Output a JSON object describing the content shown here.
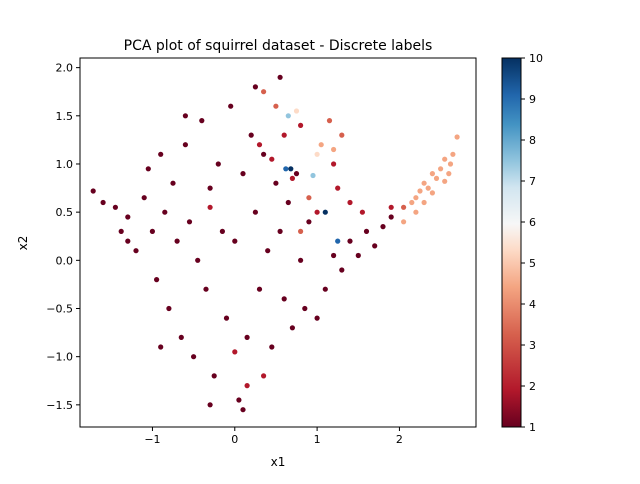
{
  "chart_data": {
    "type": "scatter",
    "title": "PCA plot of squirrel dataset - Discrete labels",
    "xlabel": "x1",
    "ylabel": "x2",
    "xlim": [
      -1.88,
      2.93
    ],
    "ylim": [
      -1.73,
      2.1
    ],
    "xticks": [
      -1,
      0,
      1,
      2
    ],
    "yticks": [
      -1.5,
      -1.0,
      -0.5,
      0.0,
      0.5,
      1.0,
      1.5,
      2.0
    ],
    "xtick_labels": [
      "−1",
      "0",
      "1",
      "2"
    ],
    "ytick_labels": [
      "−1.5",
      "−1.0",
      "−0.5",
      "0.0",
      "0.5",
      "1.0",
      "1.5",
      "2.0"
    ],
    "colorbar": {
      "label": "",
      "vmin": 1,
      "vmax": 10,
      "ticks": [
        1,
        2,
        3,
        4,
        5,
        6,
        7,
        8,
        9,
        10
      ],
      "tick_labels": [
        "1",
        "2",
        "3",
        "4",
        "5",
        "6",
        "7",
        "8",
        "9",
        "10"
      ],
      "colormap": "RdBu"
    },
    "grid": false,
    "legend": "none",
    "series": [
      {
        "label_value": 1,
        "color": "#67001f",
        "points": [
          [
            -1.72,
            0.72
          ],
          [
            -1.6,
            0.6
          ],
          [
            -1.45,
            0.55
          ],
          [
            -1.38,
            0.3
          ],
          [
            -1.3,
            0.45
          ],
          [
            -1.2,
            0.1
          ],
          [
            -1.1,
            0.65
          ],
          [
            -1.05,
            0.95
          ],
          [
            -1.0,
            0.3
          ],
          [
            -0.95,
            -0.2
          ],
          [
            -0.9,
            1.1
          ],
          [
            -0.85,
            0.5
          ],
          [
            -0.8,
            -0.5
          ],
          [
            -0.75,
            0.8
          ],
          [
            -0.7,
            0.2
          ],
          [
            -0.65,
            -0.8
          ],
          [
            -0.6,
            1.2
          ],
          [
            -0.55,
            0.4
          ],
          [
            -0.5,
            -1.0
          ],
          [
            -0.45,
            0.0
          ],
          [
            -0.4,
            1.45
          ],
          [
            -0.35,
            -0.3
          ],
          [
            -0.3,
            0.75
          ],
          [
            -0.25,
            -1.2
          ],
          [
            -0.2,
            1.0
          ],
          [
            -0.15,
            0.3
          ],
          [
            -0.1,
            -0.6
          ],
          [
            -0.05,
            1.6
          ],
          [
            0.0,
            0.2
          ],
          [
            0.05,
            -1.45
          ],
          [
            0.1,
            0.9
          ],
          [
            0.15,
            -0.8
          ],
          [
            0.2,
            1.3
          ],
          [
            0.25,
            0.5
          ],
          [
            0.3,
            -0.3
          ],
          [
            0.35,
            1.1
          ],
          [
            0.4,
            0.1
          ],
          [
            0.45,
            -0.9
          ],
          [
            0.5,
            0.8
          ],
          [
            0.55,
            0.3
          ],
          [
            0.6,
            -0.4
          ],
          [
            0.65,
            0.6
          ],
          [
            0.7,
            -0.7
          ],
          [
            0.75,
            0.9
          ],
          [
            0.8,
            0.0
          ],
          [
            0.85,
            -0.5
          ],
          [
            0.9,
            0.4
          ],
          [
            1.0,
            -0.6
          ],
          [
            1.1,
            -0.3
          ],
          [
            1.2,
            0.05
          ],
          [
            1.3,
            -0.1
          ],
          [
            1.4,
            0.2
          ],
          [
            1.5,
            0.05
          ],
          [
            1.6,
            0.3
          ],
          [
            1.7,
            0.15
          ],
          [
            1.8,
            0.35
          ],
          [
            1.9,
            0.45
          ],
          [
            -0.3,
            -1.5
          ],
          [
            0.1,
            -1.55
          ],
          [
            -0.6,
            1.5
          ],
          [
            0.25,
            1.8
          ],
          [
            -0.9,
            -0.9
          ],
          [
            -1.3,
            0.2
          ],
          [
            0.55,
            1.9
          ]
        ]
      },
      {
        "label_value": 2,
        "color": "#b2182b",
        "points": [
          [
            0.3,
            1.2
          ],
          [
            0.45,
            1.05
          ],
          [
            0.6,
            1.3
          ],
          [
            0.7,
            0.85
          ],
          [
            1.0,
            0.5
          ],
          [
            1.2,
            1.0
          ],
          [
            1.4,
            0.6
          ],
          [
            1.55,
            0.5
          ],
          [
            1.9,
            0.55
          ],
          [
            0.0,
            -0.95
          ],
          [
            0.35,
            -1.2
          ],
          [
            -0.3,
            0.55
          ],
          [
            0.8,
            1.4
          ],
          [
            1.25,
            0.75
          ],
          [
            0.15,
            -1.3
          ]
        ]
      },
      {
        "label_value": 3,
        "color": "#d6604d",
        "points": [
          [
            0.5,
            1.6
          ],
          [
            0.35,
            1.75
          ],
          [
            1.15,
            1.45
          ],
          [
            0.9,
            0.65
          ],
          [
            1.3,
            1.3
          ],
          [
            0.8,
            0.3
          ],
          [
            2.05,
            0.55
          ]
        ]
      },
      {
        "label_value": 4,
        "color": "#f4a582",
        "points": [
          [
            1.05,
            1.2
          ],
          [
            1.2,
            1.15
          ],
          [
            2.05,
            0.4
          ],
          [
            2.15,
            0.6
          ],
          [
            2.2,
            0.65
          ],
          [
            2.25,
            0.72
          ],
          [
            2.3,
            0.8
          ],
          [
            2.35,
            0.75
          ],
          [
            2.4,
            0.9
          ],
          [
            2.45,
            0.85
          ],
          [
            2.5,
            0.95
          ],
          [
            2.55,
            1.05
          ],
          [
            2.6,
            0.9
          ],
          [
            2.65,
            1.1
          ],
          [
            2.7,
            1.28
          ],
          [
            2.3,
            0.6
          ],
          [
            2.4,
            0.7
          ],
          [
            2.55,
            0.82
          ],
          [
            2.2,
            0.5
          ],
          [
            2.62,
            1.0
          ]
        ]
      },
      {
        "label_value": 5,
        "color": "#fddbc7",
        "points": [
          [
            1.0,
            1.1
          ],
          [
            0.75,
            1.55
          ]
        ]
      },
      {
        "label_value": 7,
        "color": "#92c5de",
        "points": [
          [
            0.65,
            1.5
          ],
          [
            0.95,
            0.88
          ]
        ]
      },
      {
        "label_value": 9,
        "color": "#2166ac",
        "points": [
          [
            0.62,
            0.95
          ],
          [
            1.25,
            0.2
          ]
        ]
      },
      {
        "label_value": 10,
        "color": "#053061",
        "points": [
          [
            1.1,
            0.5
          ],
          [
            0.68,
            0.95
          ]
        ]
      }
    ]
  }
}
